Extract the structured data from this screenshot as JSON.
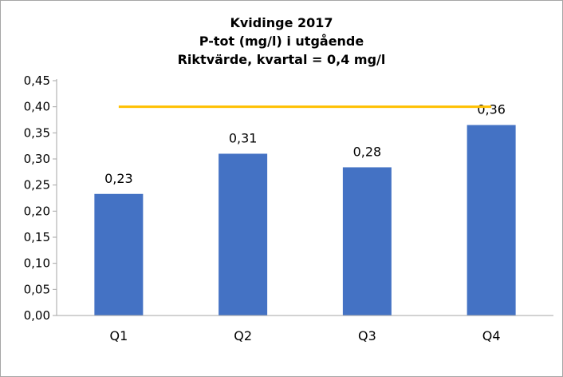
{
  "chart_data": {
    "type": "bar",
    "title_lines": [
      "Kvidinge 2017",
      "P-tot (mg/l) i utgående",
      "Riktvärde, kvartal = 0,4 mg/l"
    ],
    "categories": [
      "Q1",
      "Q2",
      "Q3",
      "Q4"
    ],
    "values": [
      0.233,
      0.31,
      0.284,
      0.365
    ],
    "value_labels": [
      "0,23",
      "0,31",
      "0,28",
      "0,36"
    ],
    "reference_line": {
      "value": 0.4,
      "color": "#ffc000"
    },
    "ylim": [
      0,
      0.45
    ],
    "yticks": [
      0,
      0.05,
      0.1,
      0.15,
      0.2,
      0.25,
      0.3,
      0.35,
      0.4,
      0.45
    ],
    "ytick_labels": [
      "0,00",
      "0,05",
      "0,10",
      "0,15",
      "0,20",
      "0,25",
      "0,30",
      "0,35",
      "0,40",
      "0,45"
    ],
    "xlabel": "",
    "ylabel": "",
    "grid": false,
    "legend": false,
    "bar_color": "#4472c4"
  }
}
